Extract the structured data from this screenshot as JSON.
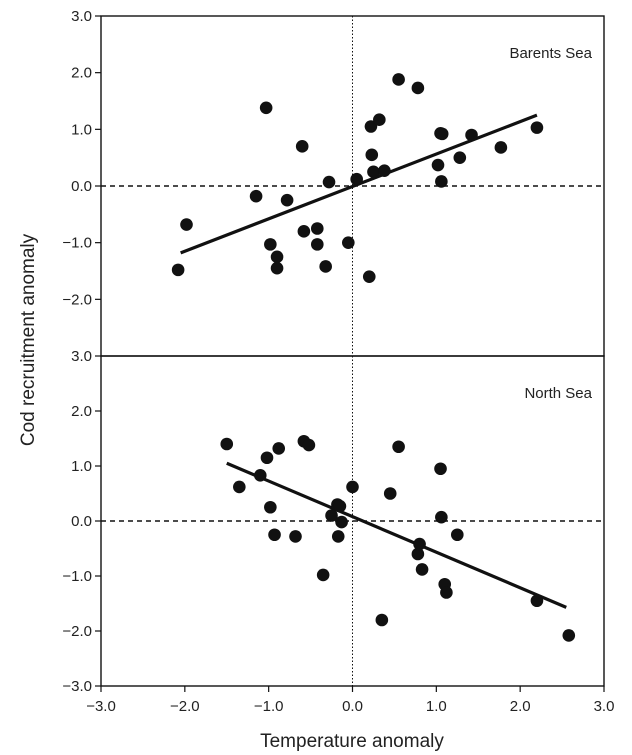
{
  "figure": {
    "ylabel": "Cod recruitment anomaly",
    "xlabel": "Temperature anomaly",
    "xticks": [
      "−3.0",
      "−2.0",
      "−1.0",
      "0.0",
      "1.0",
      "2.0",
      "3.0"
    ],
    "yticks": [
      "3.0",
      "2.0",
      "1.0",
      "0.0",
      "−1.0",
      "−2.0",
      "−3.0"
    ]
  },
  "chart_data": [
    {
      "type": "scatter",
      "panel_label": "Barents Sea",
      "xlim": [
        -3.0,
        3.0
      ],
      "ylim": [
        -3.0,
        3.0
      ],
      "x": [
        -2.08,
        -1.98,
        -1.15,
        -1.03,
        -0.98,
        -0.9,
        -0.9,
        -0.78,
        -0.6,
        -0.58,
        -0.42,
        -0.42,
        -0.32,
        -0.28,
        -0.05,
        0.05,
        0.2,
        0.22,
        0.23,
        0.25,
        0.32,
        0.38,
        0.55,
        0.78,
        1.02,
        1.05,
        1.06,
        1.07,
        1.28,
        1.42,
        1.77,
        2.2
      ],
      "y": [
        -1.48,
        -0.68,
        -0.18,
        1.38,
        -1.03,
        -1.25,
        -1.45,
        -0.25,
        0.7,
        -0.8,
        -0.75,
        -1.03,
        -1.42,
        0.07,
        -1.0,
        0.12,
        -1.6,
        1.05,
        0.55,
        0.25,
        1.17,
        0.27,
        1.88,
        1.73,
        0.37,
        0.93,
        0.08,
        0.92,
        0.5,
        0.9,
        0.68,
        1.03
      ],
      "regression": {
        "x": [
          -2.05,
          2.2
        ],
        "y": [
          -1.18,
          1.25
        ]
      },
      "reference_lines": {
        "y": 0.0,
        "x": 0.0
      },
      "grid": false
    },
    {
      "type": "scatter",
      "panel_label": "North Sea",
      "xlim": [
        -3.0,
        3.0
      ],
      "ylim": [
        -3.0,
        3.0
      ],
      "x": [
        -1.5,
        -1.35,
        -1.1,
        -1.02,
        -0.98,
        -0.93,
        -0.88,
        -0.68,
        -0.58,
        -0.52,
        -0.35,
        -0.25,
        -0.18,
        -0.17,
        -0.15,
        -0.13,
        0.0,
        0.35,
        0.45,
        0.55,
        0.78,
        0.8,
        0.83,
        1.05,
        1.06,
        1.1,
        1.12,
        1.25,
        2.2,
        2.58
      ],
      "y": [
        1.4,
        0.62,
        0.83,
        1.15,
        0.25,
        -0.25,
        1.32,
        -0.28,
        1.45,
        1.38,
        -0.98,
        0.1,
        0.3,
        -0.28,
        0.27,
        -0.02,
        0.62,
        -1.8,
        0.5,
        1.35,
        -0.6,
        -0.42,
        -0.88,
        0.95,
        0.07,
        -1.15,
        -1.3,
        -0.25,
        -1.45,
        -2.08
      ],
      "regression": {
        "x": [
          -1.5,
          2.55
        ],
        "y": [
          1.05,
          -1.57
        ]
      },
      "reference_lines": {
        "y": 0.0,
        "x": 0.0
      },
      "grid": false
    }
  ]
}
